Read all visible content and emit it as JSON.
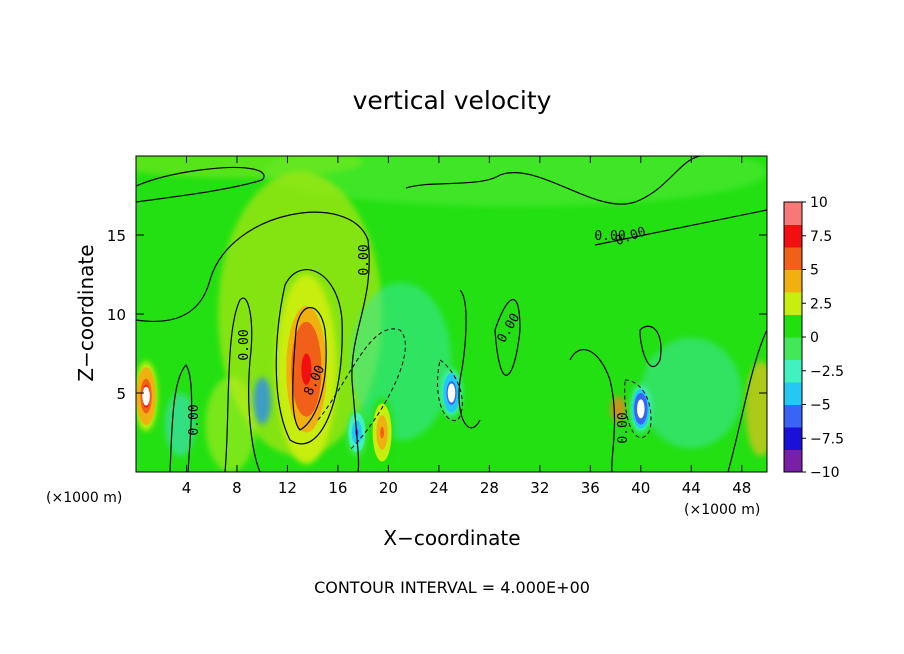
{
  "chart_data": {
    "type": "heatmap",
    "title": "vertical velocity",
    "xlabel": "X−coordinate",
    "ylabel": "Z−coordinate",
    "x_unit_label": "(×1000 m)",
    "x_ticks": [
      4,
      8,
      12,
      16,
      20,
      24,
      28,
      32,
      36,
      40,
      44,
      48
    ],
    "y_ticks": [
      5,
      10,
      15
    ],
    "xlim": [
      0,
      50
    ],
    "ylim": [
      0,
      20
    ],
    "colorbar": {
      "ticks": [
        "10",
        "7.5",
        "5",
        "2.5",
        "0",
        "−2.5",
        "−5",
        "−7.5",
        "−10"
      ],
      "min": -10,
      "max": 10,
      "colors": [
        "#7a1fa8",
        "#1a10d8",
        "#3a64f5",
        "#24c8f5",
        "#40f2c0",
        "#42e85a",
        "#20e010",
        "#c8ee10",
        "#f0b010",
        "#f06018",
        "#f01010",
        "#f87878"
      ]
    },
    "contour_labels": [
      "0.00",
      "0.00",
      "0.00",
      "0.00",
      "0.00",
      "0.00",
      "8.00",
      "0.00"
    ],
    "features": [
      {
        "x": 13.5,
        "z": 6.5,
        "w": 7.7,
        "type": "updraft"
      },
      {
        "x": 0.8,
        "z": 4.8,
        "w": 8.5,
        "type": "updraft"
      },
      {
        "x": 25.0,
        "z": 5.0,
        "w": -9.0,
        "type": "downdraft"
      },
      {
        "x": 40.0,
        "z": 4.0,
        "w": -9.5,
        "type": "downdraft"
      },
      {
        "x": 17.5,
        "z": 2.5,
        "w": -5.5,
        "type": "downdraft"
      },
      {
        "x": 19.5,
        "z": 2.5,
        "w": 5.0,
        "type": "updraft"
      }
    ],
    "footer": "CONTOUR INTERVAL = 4.000E+00"
  }
}
